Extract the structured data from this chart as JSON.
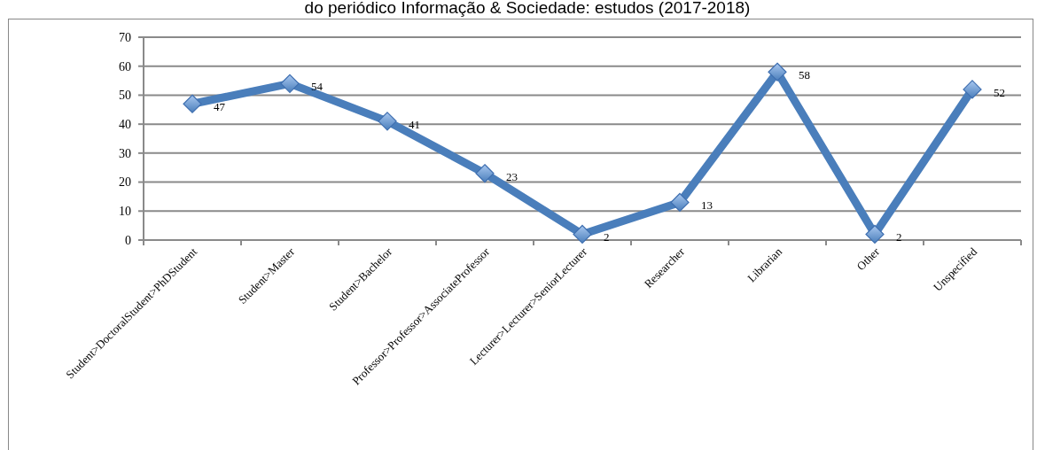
{
  "chart_data": {
    "type": "line",
    "title": "do periódico Informação & Sociedade: estudos (2017-2018)",
    "categories": [
      "Student>DoctoralStudent>PhDStudent",
      "Student>Master",
      "Student>Bachelor",
      "Professor>Professor>AssociateProfessor",
      "Lecturer>Lecturer>SeniorLecturer",
      "Researcher",
      "Librarian",
      "Other",
      "Unspecified"
    ],
    "series": [
      {
        "color": "#4a7ebb",
        "values": [
          47,
          54,
          41,
          23,
          2,
          13,
          58,
          2,
          52
        ]
      }
    ],
    "ylim": [
      0,
      70
    ],
    "yticks": [
      0,
      10,
      20,
      30,
      40,
      50,
      60,
      70
    ],
    "grid": "y",
    "marker": "diamond",
    "line_style": "solid",
    "data_labels": true
  }
}
